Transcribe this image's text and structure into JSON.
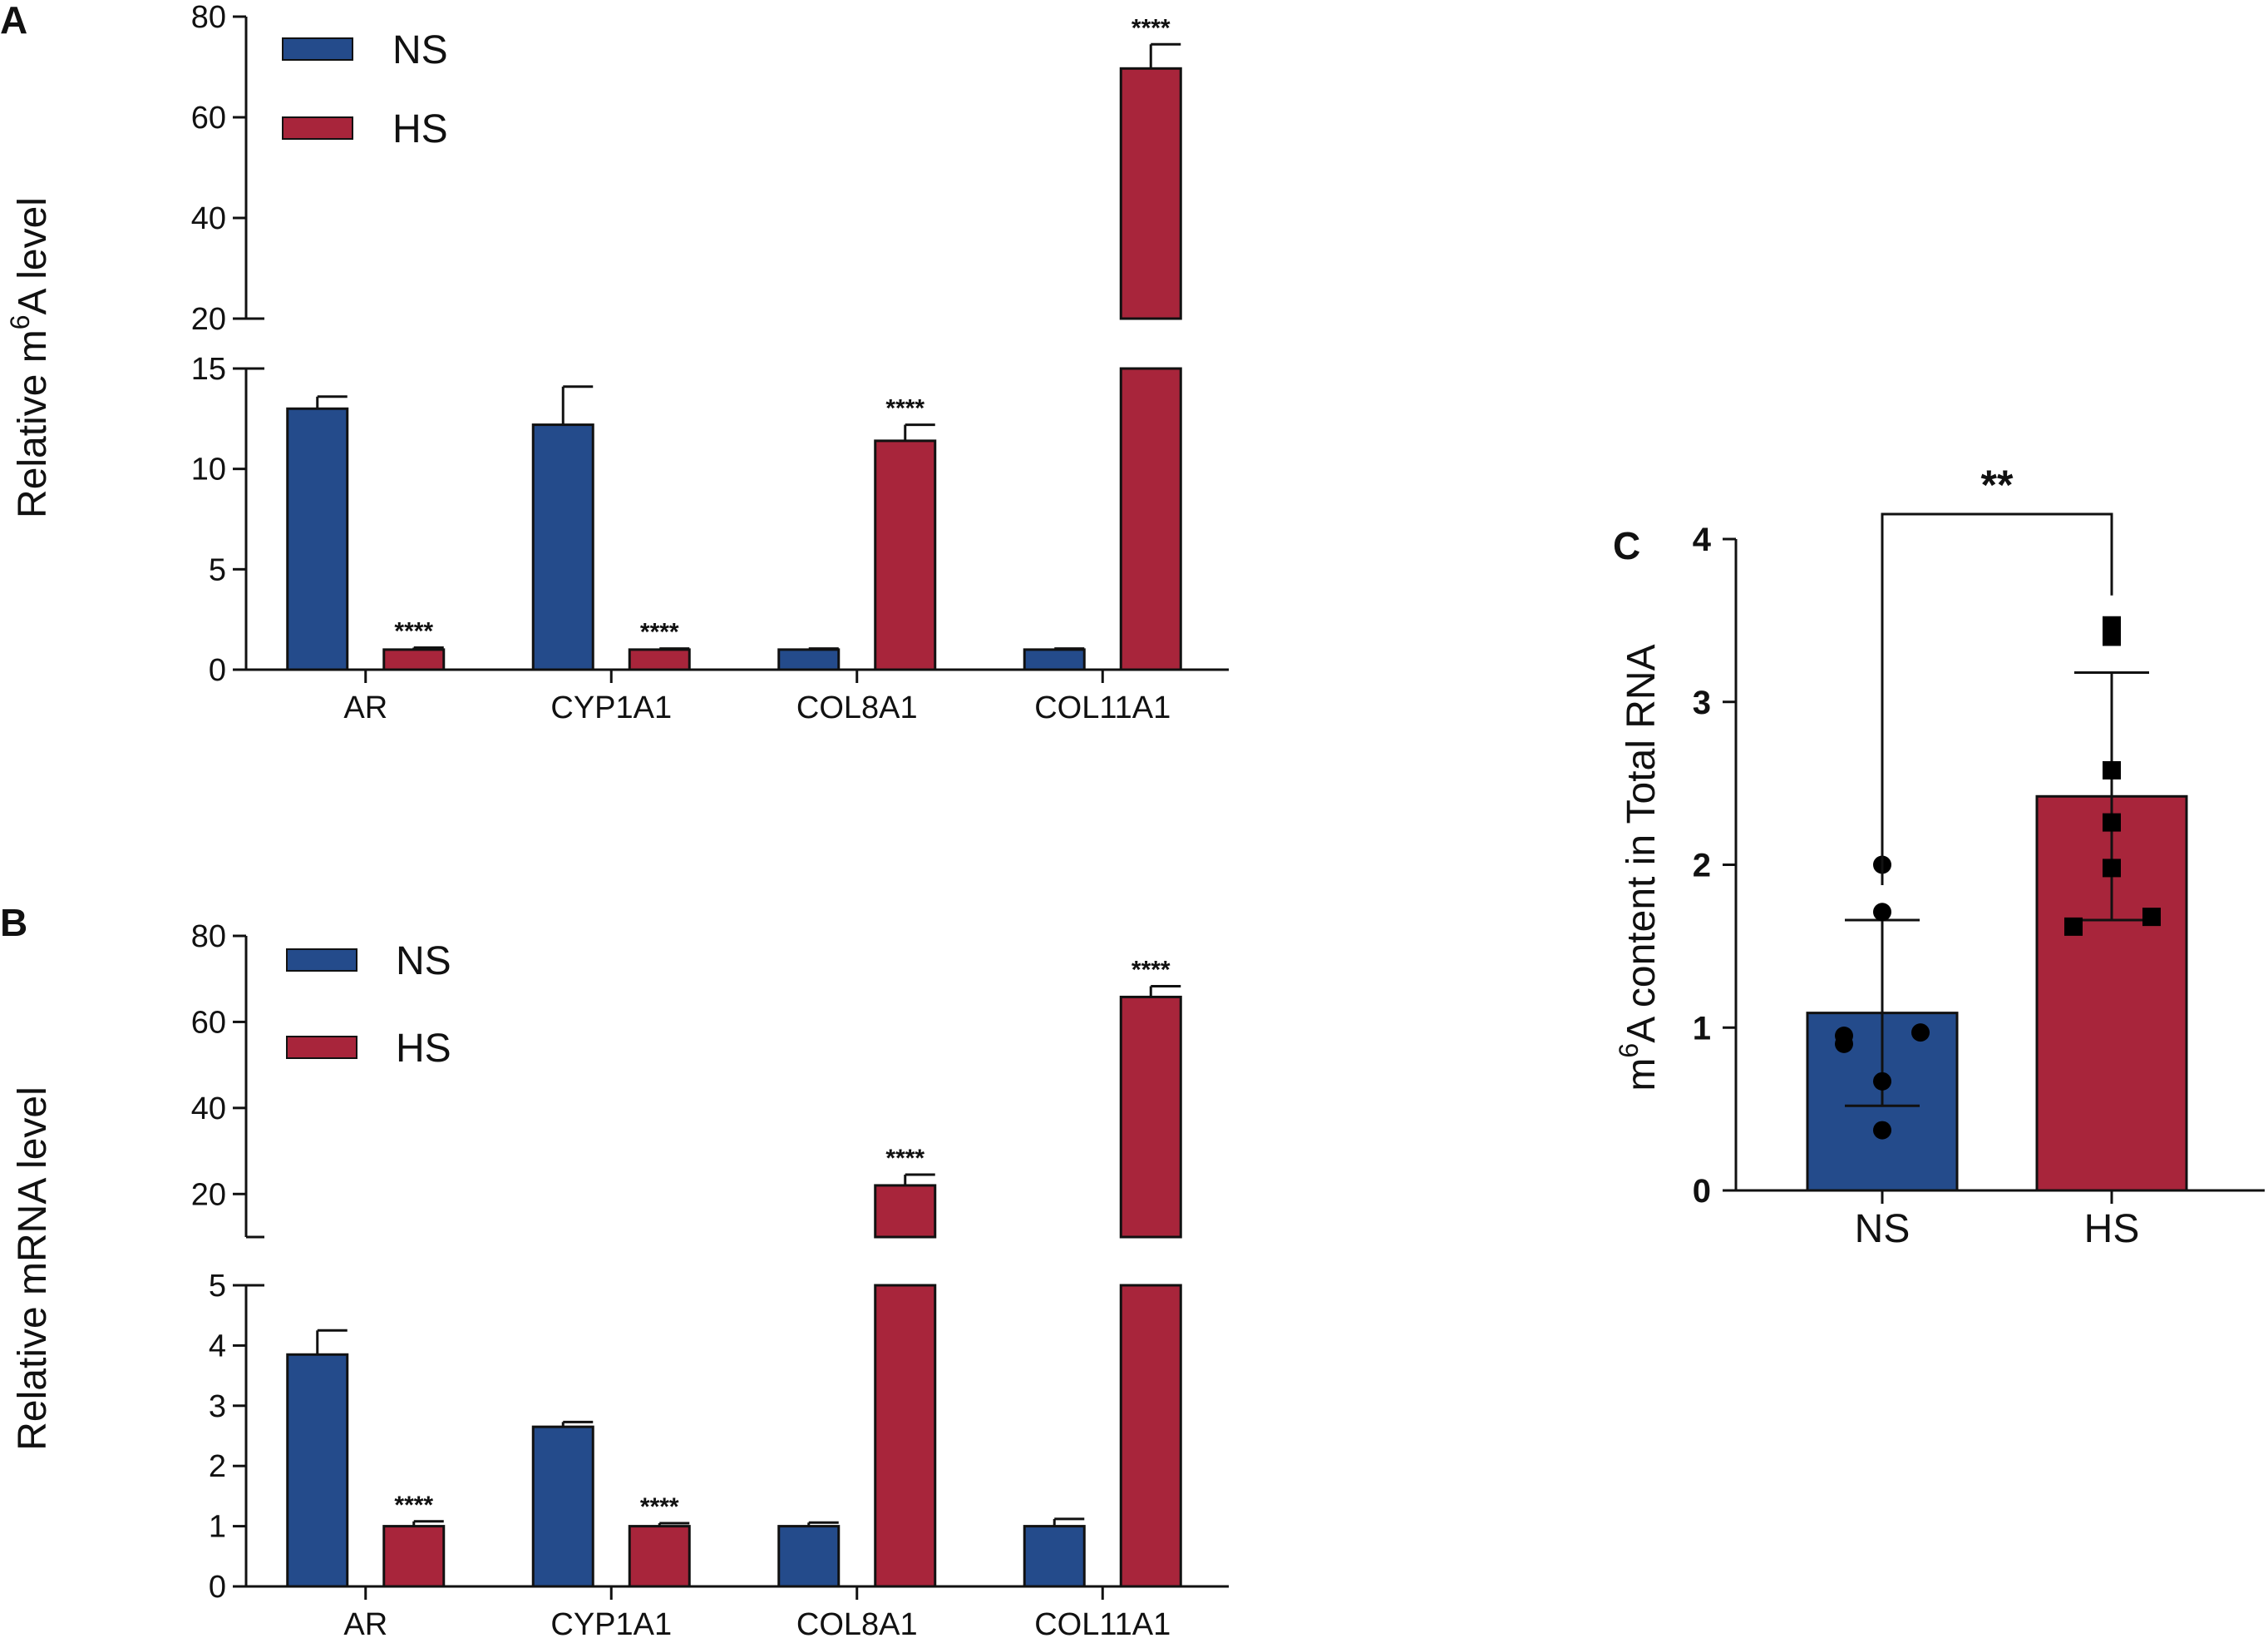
{
  "colors": {
    "NS": "#244b8b",
    "HS": "#a8253b",
    "axis": "#111111"
  },
  "panels": [
    {
      "letter": "A",
      "ylabel_main": "Relative m",
      "ylabel_sup": "6",
      "ylabel_rest": "A level",
      "legend": [
        "NS",
        "HS"
      ],
      "chart_data": {
        "type": "bar",
        "title": "",
        "xlabel": "",
        "ylabel": "Relative m6A level",
        "categories": [
          "AR",
          "CYP1A1",
          "COL8A1",
          "COL11A1"
        ],
        "series": [
          {
            "name": "NS",
            "values": [
              13.0,
              12.2,
              1.0,
              1.0
            ],
            "errors": [
              0.6,
              1.9,
              0.05,
              0.05
            ]
          },
          {
            "name": "HS",
            "values": [
              1.0,
              1.0,
              11.4,
              69.7
            ],
            "errors": [
              0.1,
              0.05,
              0.8,
              4.8
            ]
          }
        ],
        "significance": [
          {
            "category": "AR",
            "series": "HS",
            "label": "****"
          },
          {
            "category": "CYP1A1",
            "series": "HS",
            "label": "****"
          },
          {
            "category": "COL8A1",
            "series": "HS",
            "label": "****"
          },
          {
            "category": "COL11A1",
            "series": "HS",
            "label": "****"
          }
        ],
        "axis_break": true,
        "lower_segment": {
          "ylim": [
            0,
            15
          ],
          "ticks": [
            0,
            5,
            10,
            15
          ]
        },
        "upper_segment": {
          "ylim": [
            20,
            80
          ],
          "ticks": [
            20,
            40,
            60,
            80
          ]
        }
      }
    },
    {
      "letter": "B",
      "ylabel_main": "Relative mRNA level",
      "ylabel_sup": "",
      "ylabel_rest": "",
      "legend": [
        "NS",
        "HS"
      ],
      "chart_data": {
        "type": "bar",
        "title": "",
        "xlabel": "",
        "ylabel": "Relative mRNA level",
        "categories": [
          "AR",
          "CYP1A1",
          "COL8A1",
          "COL11A1"
        ],
        "series": [
          {
            "name": "NS",
            "values": [
              3.85,
              2.65,
              1.0,
              1.0
            ],
            "errors": [
              0.4,
              0.08,
              0.06,
              0.12
            ]
          },
          {
            "name": "HS",
            "values": [
              1.0,
              1.0,
              22.0,
              65.8
            ],
            "errors": [
              0.08,
              0.05,
              2.5,
              2.5
            ]
          }
        ],
        "significance": [
          {
            "category": "AR",
            "series": "HS",
            "label": "****"
          },
          {
            "category": "CYP1A1",
            "series": "HS",
            "label": "****"
          },
          {
            "category": "COL8A1",
            "series": "HS",
            "label": "****"
          },
          {
            "category": "COL11A1",
            "series": "HS",
            "label": "****"
          }
        ],
        "axis_break": true,
        "lower_segment": {
          "ylim": [
            0,
            5
          ],
          "ticks": [
            0,
            1,
            2,
            3,
            4,
            5
          ]
        },
        "upper_segment": {
          "ylim": [
            10,
            80
          ],
          "ticks": [
            20,
            40,
            60,
            80
          ]
        }
      }
    },
    {
      "letter": "C",
      "ylabel_main": "m",
      "ylabel_sup": "6",
      "ylabel_rest": "A content in Total RNA",
      "chart_data": {
        "type": "bar",
        "title": "",
        "xlabel": "",
        "ylabel": "m6A content in Total RNA",
        "categories": [
          "NS",
          "HS"
        ],
        "values": [
          1.09,
          2.42
        ],
        "errors": [
          0.57,
          0.76
        ],
        "points": {
          "NS": [
            2.0,
            1.71,
            0.97,
            0.95,
            0.9,
            0.67,
            0.37
          ],
          "HS": [
            3.47,
            3.4,
            2.58,
            2.26,
            1.98,
            1.68,
            1.62
          ]
        },
        "point_markers": {
          "NS": "circle",
          "HS": "square"
        },
        "significance": "**",
        "ylim": [
          0,
          4
        ],
        "ticks": [
          0,
          1,
          2,
          3,
          4
        ]
      }
    }
  ]
}
